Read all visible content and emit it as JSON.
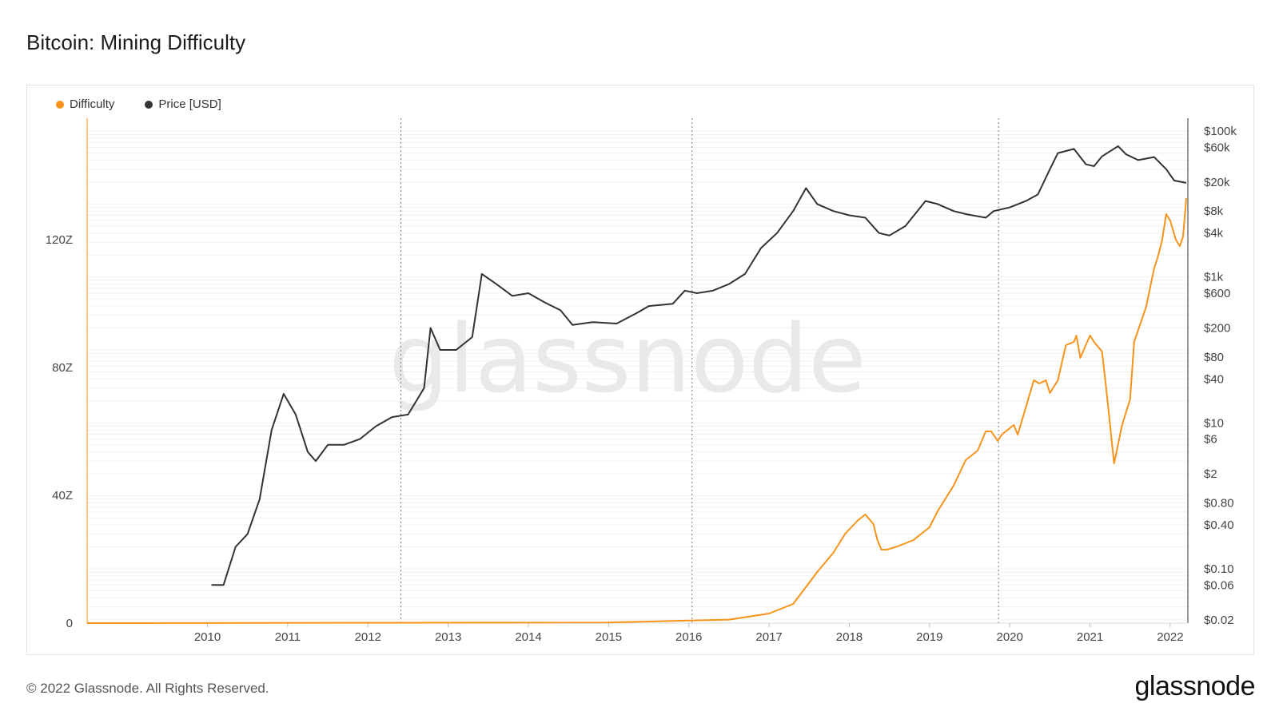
{
  "title": "Bitcoin: Mining Difficulty",
  "legend": [
    {
      "label": "Difficulty",
      "color": "#f7931a"
    },
    {
      "label": "Price [USD]",
      "color": "#333333"
    }
  ],
  "watermark": "glassnode",
  "footer": {
    "copyright": "© 2022 Glassnode. All Rights Reserved.",
    "logo": "glassnode"
  },
  "chart_data": {
    "type": "line",
    "title": "Bitcoin: Mining Difficulty",
    "x_ticks": [
      "2010",
      "2011",
      "2012",
      "2013",
      "2014",
      "2015",
      "2016",
      "2017",
      "2018",
      "2019",
      "2020",
      "2021",
      "2022"
    ],
    "x_range": [
      2009.0,
      2022.72
    ],
    "halvings": [
      2012.91,
      2016.54,
      2020.36
    ],
    "left_axis": {
      "label": "Difficulty",
      "ticks": [
        "0",
        "40Z",
        "80Z",
        "120Z"
      ],
      "tick_values": [
        0,
        40,
        80,
        120
      ],
      "range": [
        0,
        158
      ]
    },
    "right_axis": {
      "label": "Price [USD]",
      "scale": "log",
      "ticks": [
        "$0.02",
        "$0.06",
        "$0.10",
        "$0.40",
        "$0.80",
        "$2",
        "$6",
        "$10",
        "$40",
        "$80",
        "$200",
        "$600",
        "$1k",
        "$4k",
        "$8k",
        "$20k",
        "$60k",
        "$100k"
      ],
      "tick_values": [
        0.02,
        0.06,
        0.1,
        0.4,
        0.8,
        2,
        6,
        10,
        40,
        80,
        200,
        600,
        1000,
        4000,
        8000,
        20000,
        60000,
        100000
      ],
      "range": [
        0.018,
        150000
      ]
    },
    "series": [
      {
        "name": "Difficulty",
        "unit": "Z",
        "color": "#f7931a",
        "x": [
          2009.0,
          2015.5,
          2016.0,
          2016.5,
          2017.0,
          2017.5,
          2017.8,
          2017.95,
          2018.1,
          2018.3,
          2018.45,
          2018.6,
          2018.7,
          2018.8,
          2018.85,
          2018.9,
          2018.97,
          2019.1,
          2019.3,
          2019.5,
          2019.6,
          2019.8,
          2019.95,
          2020.1,
          2020.2,
          2020.27,
          2020.35,
          2020.4,
          2020.45,
          2020.55,
          2020.6,
          2020.8,
          2020.87,
          2020.95,
          2021.0,
          2021.1,
          2021.2,
          2021.3,
          2021.33,
          2021.38,
          2021.43,
          2021.5,
          2021.55,
          2021.65,
          2021.7,
          2021.8,
          2021.9,
          2022.0,
          2022.05,
          2022.2,
          2022.3,
          2022.35,
          2022.4,
          2022.45,
          2022.5,
          2022.57,
          2022.62,
          2022.66,
          2022.7
        ],
        "y": [
          0,
          0.2,
          0.5,
          0.8,
          1.1,
          3,
          6,
          11,
          16,
          22,
          28,
          32,
          34,
          31,
          26,
          23,
          23,
          24,
          26,
          30,
          35,
          43,
          51,
          54,
          60,
          60,
          57,
          59,
          60,
          62,
          59,
          76,
          75,
          76,
          72,
          76,
          87,
          88,
          90,
          83,
          86,
          90,
          88,
          85,
          74,
          50,
          62,
          70,
          88,
          99,
          111,
          115,
          120,
          128,
          126,
          120,
          118,
          121,
          133
        ]
      },
      {
        "name": "Price [USD]",
        "color": "#333333",
        "x": [
          2010.55,
          2010.7,
          2010.85,
          2011.0,
          2011.15,
          2011.3,
          2011.45,
          2011.6,
          2011.75,
          2011.85,
          2012.0,
          2012.2,
          2012.4,
          2012.6,
          2012.8,
          2013.0,
          2013.2,
          2013.28,
          2013.4,
          2013.6,
          2013.8,
          2013.92,
          2014.1,
          2014.3,
          2014.5,
          2014.7,
          2014.9,
          2015.05,
          2015.3,
          2015.6,
          2015.85,
          2016.0,
          2016.3,
          2016.45,
          2016.6,
          2016.8,
          2017.0,
          2017.2,
          2017.4,
          2017.6,
          2017.8,
          2017.96,
          2018.1,
          2018.3,
          2018.5,
          2018.7,
          2018.87,
          2019.0,
          2019.2,
          2019.45,
          2019.6,
          2019.8,
          2019.97,
          2020.2,
          2020.3,
          2020.5,
          2020.7,
          2020.85,
          2021.0,
          2021.1,
          2021.3,
          2021.45,
          2021.55,
          2021.65,
          2021.85,
          2021.95,
          2022.1,
          2022.3,
          2022.45,
          2022.55,
          2022.7
        ],
        "y": [
          0.06,
          0.06,
          0.2,
          0.3,
          0.9,
          8,
          25,
          13,
          4,
          3,
          5,
          5,
          6,
          9,
          12,
          13,
          30,
          200,
          100,
          100,
          150,
          1100,
          800,
          550,
          600,
          450,
          350,
          220,
          240,
          230,
          320,
          400,
          430,
          650,
          600,
          650,
          800,
          1100,
          2500,
          4000,
          8000,
          16500,
          10000,
          8000,
          7000,
          6500,
          4000,
          3700,
          5000,
          11000,
          10000,
          8000,
          7200,
          6500,
          8000,
          9000,
          11000,
          13500,
          30000,
          50000,
          57000,
          35000,
          33000,
          45000,
          62000,
          48000,
          40000,
          44000,
          30000,
          21000,
          19500
        ]
      }
    ]
  }
}
